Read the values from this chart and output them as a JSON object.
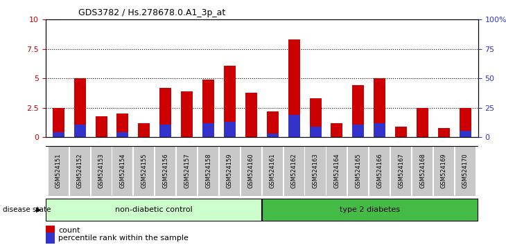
{
  "title": "GDS3782 / Hs.278678.0.A1_3p_at",
  "samples": [
    "GSM524151",
    "GSM524152",
    "GSM524153",
    "GSM524154",
    "GSM524155",
    "GSM524156",
    "GSM524157",
    "GSM524158",
    "GSM524159",
    "GSM524160",
    "GSM524161",
    "GSM524162",
    "GSM524163",
    "GSM524164",
    "GSM524165",
    "GSM524166",
    "GSM524167",
    "GSM524168",
    "GSM524169",
    "GSM524170"
  ],
  "count_values": [
    2.5,
    5.0,
    1.8,
    2.0,
    1.2,
    4.2,
    3.9,
    4.9,
    6.1,
    3.8,
    2.2,
    8.3,
    3.3,
    1.2,
    4.4,
    5.0,
    0.9,
    2.5,
    0.8,
    2.5
  ],
  "percentile_values": [
    0.45,
    1.1,
    0.0,
    0.4,
    0.0,
    1.1,
    0.0,
    1.2,
    1.3,
    0.0,
    0.3,
    1.9,
    0.9,
    0.0,
    1.1,
    1.2,
    0.0,
    0.0,
    0.0,
    0.55
  ],
  "bar_color_count": "#cc0000",
  "bar_color_percentile": "#3333cc",
  "ylim": [
    0,
    10
  ],
  "yticks": [
    0,
    2.5,
    5.0,
    7.5,
    10
  ],
  "ytick_labels_left": [
    "0",
    "2.5",
    "5",
    "7.5",
    "10"
  ],
  "ytick_labels_right": [
    "0",
    "25",
    "50",
    "75",
    "100%"
  ],
  "background_color": "#ffffff",
  "tick_bg_color": "#c8c8c8",
  "group1_label": "non-diabetic control",
  "group2_label": "type 2 diabetes",
  "group1_color": "#ccffcc",
  "group2_color": "#44bb44",
  "group1_count": 10,
  "group2_count": 10,
  "disease_state_label": "disease state",
  "legend_count_label": "count",
  "legend_percentile_label": "percentile rank within the sample",
  "bar_width": 0.55
}
